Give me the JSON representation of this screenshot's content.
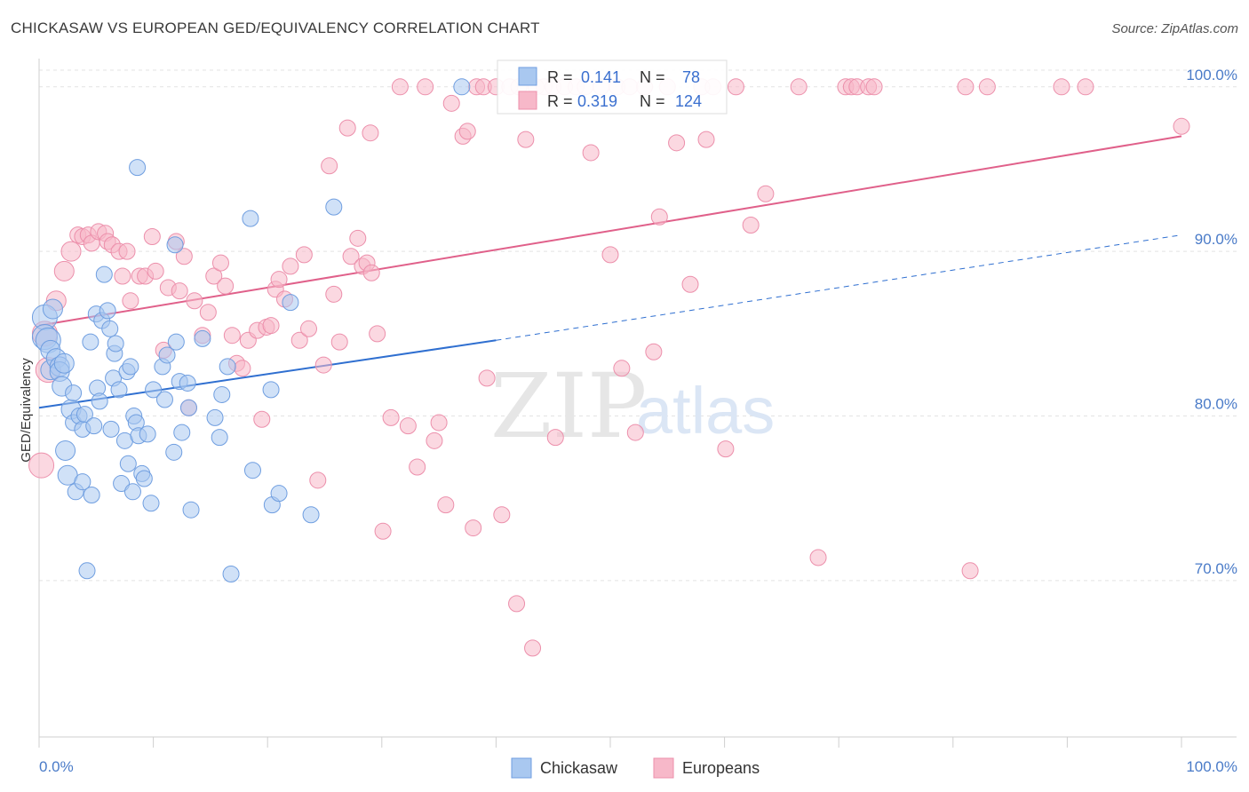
{
  "header": {
    "title": "CHICKASAW VS EUROPEAN GED/EQUIVALENCY CORRELATION CHART",
    "source": "Source: ZipAtlas.com"
  },
  "watermark": {
    "zip": "ZIP",
    "atlas": "atlas"
  },
  "legend_box": {
    "rows": [
      {
        "r_label": "R =",
        "r_value": "0.141",
        "n_label": "N =",
        "n_value": "78",
        "color": "#a9c8f0"
      },
      {
        "r_label": "R =",
        "r_value": "0.319",
        "n_label": "N =",
        "n_value": "124",
        "color": "#f7b8c9"
      }
    ]
  },
  "bottom_legend": {
    "items": [
      {
        "label": "Chickasaw",
        "color": "#a9c8f0"
      },
      {
        "label": "Europeans",
        "color": "#f7b8c9"
      }
    ]
  },
  "chart_data": {
    "type": "scatter",
    "xlabel": "",
    "ylabel": "GED/Equivalency",
    "xlim": [
      0,
      100
    ],
    "ylim": [
      60.5,
      101.5
    ],
    "x_tick_labels": [
      "0.0%",
      "100.0%"
    ],
    "y_tick_labels": [
      "70.0%",
      "80.0%",
      "90.0%",
      "100.0%"
    ],
    "y_ticks": [
      70,
      80,
      90,
      100
    ],
    "grid": true,
    "series": [
      {
        "name": "Chickasaw",
        "color": "#a9c8f0",
        "stroke": "#6f9ee0",
        "trend": {
          "x0": 0,
          "y0": 80.5,
          "x1": 40,
          "y1": 84.6,
          "dash_to_x": 100,
          "dash_to_y": 91.0,
          "color": "#2f6fd0"
        },
        "points": [
          [
            0.5,
            86.0
          ],
          [
            0.5,
            84.8
          ],
          [
            0.8,
            84.6
          ],
          [
            1.0,
            84.0
          ],
          [
            1.2,
            86.5
          ],
          [
            1.0,
            82.8
          ],
          [
            1.5,
            83.5
          ],
          [
            1.8,
            83.0
          ],
          [
            1.8,
            82.7
          ],
          [
            2.0,
            81.8
          ],
          [
            2.2,
            83.2
          ],
          [
            2.3,
            77.9
          ],
          [
            2.5,
            76.4
          ],
          [
            2.8,
            80.4
          ],
          [
            3.0,
            81.4
          ],
          [
            3.0,
            79.6
          ],
          [
            3.2,
            75.4
          ],
          [
            3.5,
            80.0
          ],
          [
            3.8,
            76.0
          ],
          [
            3.8,
            79.2
          ],
          [
            4.0,
            80.1
          ],
          [
            4.2,
            70.6
          ],
          [
            4.5,
            84.5
          ],
          [
            4.6,
            75.2
          ],
          [
            4.8,
            79.4
          ],
          [
            5.0,
            86.2
          ],
          [
            5.1,
            81.7
          ],
          [
            5.3,
            80.9
          ],
          [
            5.5,
            85.8
          ],
          [
            5.7,
            88.6
          ],
          [
            6.0,
            86.4
          ],
          [
            6.2,
            85.3
          ],
          [
            6.3,
            79.2
          ],
          [
            6.5,
            82.3
          ],
          [
            6.6,
            83.8
          ],
          [
            6.7,
            84.4
          ],
          [
            7.0,
            81.6
          ],
          [
            7.2,
            75.9
          ],
          [
            7.5,
            78.5
          ],
          [
            7.7,
            82.7
          ],
          [
            7.8,
            77.1
          ],
          [
            8.0,
            83.0
          ],
          [
            8.2,
            75.4
          ],
          [
            8.3,
            80.0
          ],
          [
            8.5,
            79.6
          ],
          [
            8.6,
            95.1
          ],
          [
            8.7,
            78.8
          ],
          [
            9.0,
            76.5
          ],
          [
            9.2,
            76.2
          ],
          [
            9.5,
            78.9
          ],
          [
            9.8,
            74.7
          ],
          [
            10.0,
            81.6
          ],
          [
            10.8,
            83.0
          ],
          [
            11.0,
            81.0
          ],
          [
            11.2,
            83.7
          ],
          [
            11.8,
            77.8
          ],
          [
            11.9,
            90.4
          ],
          [
            12.0,
            84.5
          ],
          [
            12.3,
            82.1
          ],
          [
            12.5,
            79.0
          ],
          [
            13.0,
            82.0
          ],
          [
            13.1,
            80.5
          ],
          [
            13.3,
            74.3
          ],
          [
            14.3,
            84.7
          ],
          [
            15.4,
            79.9
          ],
          [
            15.8,
            78.7
          ],
          [
            16.0,
            81.3
          ],
          [
            16.5,
            83.0
          ],
          [
            16.8,
            70.4
          ],
          [
            18.5,
            92.0
          ],
          [
            18.7,
            76.7
          ],
          [
            20.3,
            81.6
          ],
          [
            20.4,
            74.6
          ],
          [
            21.0,
            75.3
          ],
          [
            22.0,
            86.9
          ],
          [
            23.8,
            74.0
          ],
          [
            25.8,
            92.7
          ],
          [
            37.0,
            100.0
          ]
        ]
      },
      {
        "name": "Europeans",
        "color": "#f7b8c9",
        "stroke": "#ec8fab",
        "trend": {
          "x0": 0,
          "y0": 85.5,
          "x1": 100,
          "y1": 97.0,
          "color": "#e0608a"
        },
        "points": [
          [
            0.2,
            77.0
          ],
          [
            0.5,
            85.0
          ],
          [
            0.8,
            82.8
          ],
          [
            1.5,
            87.0
          ],
          [
            2.2,
            88.8
          ],
          [
            2.8,
            90.0
          ],
          [
            3.4,
            91.0
          ],
          [
            3.8,
            90.9
          ],
          [
            4.3,
            91.0
          ],
          [
            4.6,
            90.5
          ],
          [
            5.2,
            91.2
          ],
          [
            5.8,
            91.1
          ],
          [
            6.0,
            90.6
          ],
          [
            6.4,
            90.4
          ],
          [
            7.0,
            90.0
          ],
          [
            7.3,
            88.5
          ],
          [
            7.7,
            90.0
          ],
          [
            8.0,
            87.0
          ],
          [
            8.8,
            88.5
          ],
          [
            9.3,
            88.5
          ],
          [
            9.9,
            90.9
          ],
          [
            10.2,
            88.8
          ],
          [
            10.9,
            84.0
          ],
          [
            11.3,
            87.8
          ],
          [
            12.0,
            90.6
          ],
          [
            12.3,
            87.6
          ],
          [
            12.7,
            89.7
          ],
          [
            13.1,
            80.5
          ],
          [
            13.6,
            87.0
          ],
          [
            14.3,
            84.9
          ],
          [
            14.8,
            86.3
          ],
          [
            15.3,
            88.5
          ],
          [
            15.9,
            89.3
          ],
          [
            16.3,
            87.9
          ],
          [
            16.9,
            84.9
          ],
          [
            17.3,
            83.2
          ],
          [
            17.8,
            82.9
          ],
          [
            18.3,
            84.6
          ],
          [
            19.1,
            85.2
          ],
          [
            19.5,
            79.8
          ],
          [
            19.9,
            85.4
          ],
          [
            20.3,
            85.5
          ],
          [
            20.7,
            87.7
          ],
          [
            21.0,
            88.3
          ],
          [
            21.5,
            87.1
          ],
          [
            22.0,
            89.1
          ],
          [
            22.8,
            84.6
          ],
          [
            23.2,
            89.8
          ],
          [
            23.6,
            85.3
          ],
          [
            24.4,
            76.1
          ],
          [
            24.9,
            83.1
          ],
          [
            25.4,
            95.2
          ],
          [
            25.8,
            87.4
          ],
          [
            26.3,
            84.5
          ],
          [
            27.0,
            97.5
          ],
          [
            27.3,
            89.7
          ],
          [
            27.9,
            90.8
          ],
          [
            28.3,
            89.1
          ],
          [
            28.7,
            89.3
          ],
          [
            29.1,
            88.7
          ],
          [
            29.6,
            85.0
          ],
          [
            29.0,
            97.2
          ],
          [
            30.1,
            73.0
          ],
          [
            30.8,
            79.9
          ],
          [
            31.6,
            100.0
          ],
          [
            32.3,
            79.4
          ],
          [
            33.1,
            76.9
          ],
          [
            33.8,
            100.0
          ],
          [
            34.6,
            78.5
          ],
          [
            35.0,
            79.6
          ],
          [
            35.6,
            74.6
          ],
          [
            36.1,
            99.0
          ],
          [
            37.1,
            97.0
          ],
          [
            37.5,
            97.3
          ],
          [
            38.0,
            73.2
          ],
          [
            38.3,
            100.0
          ],
          [
            38.9,
            100.0
          ],
          [
            39.2,
            82.3
          ],
          [
            40.0,
            100.0
          ],
          [
            40.5,
            74.0
          ],
          [
            41.2,
            100.0
          ],
          [
            41.8,
            68.6
          ],
          [
            42.0,
            100.0
          ],
          [
            42.6,
            96.8
          ],
          [
            43.2,
            65.9
          ],
          [
            43.5,
            100.0
          ],
          [
            44.2,
            100.0
          ],
          [
            45.0,
            100.0
          ],
          [
            45.2,
            78.7
          ],
          [
            46.0,
            100.0
          ],
          [
            47.0,
            100.0
          ],
          [
            47.8,
            100.0
          ],
          [
            48.3,
            96.0
          ],
          [
            49.2,
            100.0
          ],
          [
            50.0,
            89.8
          ],
          [
            50.6,
            100.0
          ],
          [
            51.0,
            82.9
          ],
          [
            51.7,
            100.0
          ],
          [
            52.2,
            79.0
          ],
          [
            53.0,
            100.0
          ],
          [
            53.8,
            83.9
          ],
          [
            54.3,
            92.1
          ],
          [
            55.0,
            100.0
          ],
          [
            55.8,
            96.6
          ],
          [
            57.0,
            88.0
          ],
          [
            58.0,
            100.0
          ],
          [
            58.4,
            96.8
          ],
          [
            59.0,
            100.0
          ],
          [
            60.1,
            78.0
          ],
          [
            61.0,
            100.0
          ],
          [
            62.3,
            91.6
          ],
          [
            63.6,
            93.5
          ],
          [
            66.5,
            100.0
          ],
          [
            68.2,
            71.4
          ],
          [
            70.6,
            100.0
          ],
          [
            71.1,
            100.0
          ],
          [
            71.6,
            100.0
          ],
          [
            72.6,
            100.0
          ],
          [
            73.1,
            100.0
          ],
          [
            81.1,
            100.0
          ],
          [
            81.5,
            70.6
          ],
          [
            83.0,
            100.0
          ],
          [
            89.5,
            100.0
          ],
          [
            91.6,
            100.0
          ],
          [
            100.0,
            97.6
          ]
        ]
      }
    ]
  }
}
